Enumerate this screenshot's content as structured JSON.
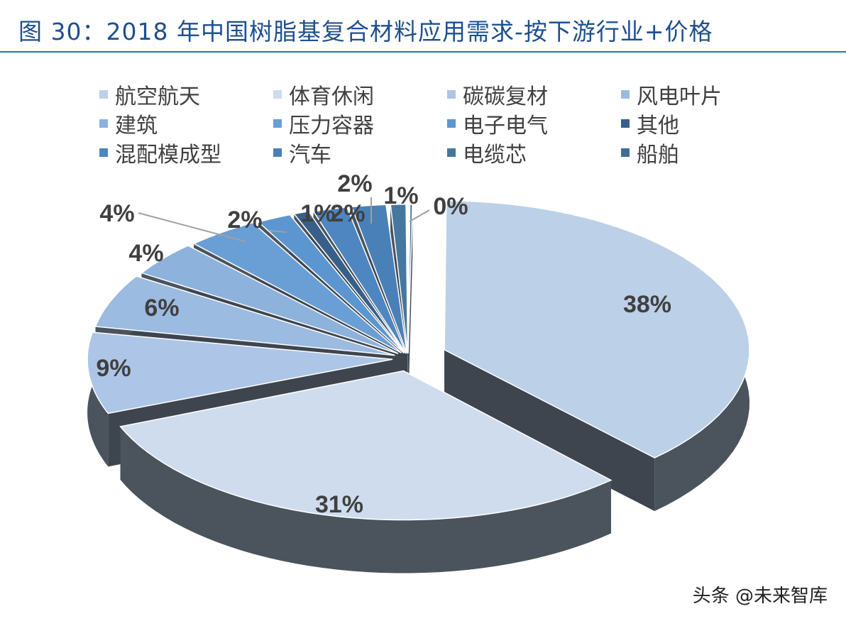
{
  "title": "图 30：2018 年中国树脂基复合材料应用需求-按下游行业+价格",
  "watermark": "头条 @未来智库",
  "chart_data": {
    "type": "pie",
    "title": "图 30：2018 年中国树脂基复合材料应用需求-按下游行业+价格",
    "style": "3d-exploded",
    "legend_position": "top",
    "categories": [
      "航空航天",
      "体育休闲",
      "碳碳复材",
      "风电叶片",
      "建筑",
      "压力容器",
      "电子电气",
      "其他",
      "混配模成型",
      "汽车",
      "电缆芯",
      "船舶"
    ],
    "values": [
      38,
      31,
      9,
      6,
      4,
      4,
      2,
      1,
      2,
      2,
      1,
      0
    ],
    "data_labels": [
      "38%",
      "31%",
      "9%",
      "6%",
      "4%",
      "4%",
      "2%",
      "1%",
      "2%",
      "2%",
      "1%",
      "0%"
    ],
    "colors": [
      "#bcd0e8",
      "#cfdcee",
      "#adc5e6",
      "#9bbbe0",
      "#8db2dc",
      "#6a9fd6",
      "#5b96d0",
      "#375f88",
      "#4d86c0",
      "#4a80b8",
      "#46789f",
      "#3f6d96"
    ],
    "side_color": "#4b535d"
  }
}
